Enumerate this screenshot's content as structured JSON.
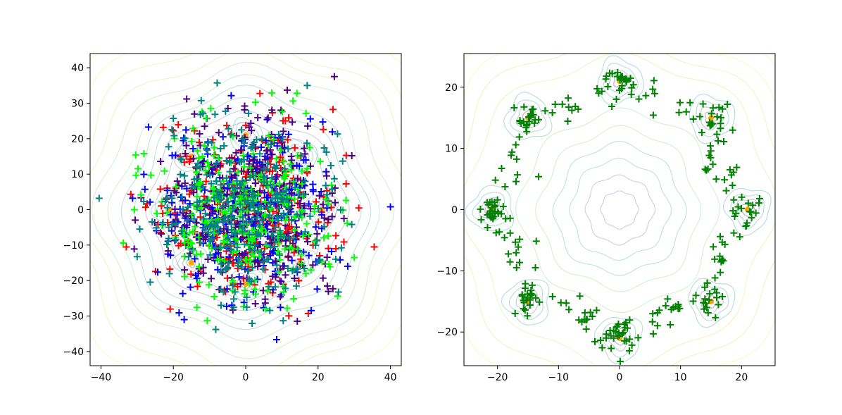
{
  "chart_data": [
    {
      "type": "scatter",
      "title": "",
      "xlabel": "",
      "ylabel": "",
      "xlim": [
        -43,
        43
      ],
      "ylim": [
        -44,
        44
      ],
      "xticks": [
        -40,
        -20,
        0,
        20,
        40
      ],
      "yticks": [
        -40,
        -30,
        -20,
        -10,
        0,
        10,
        20,
        30,
        40
      ],
      "xtick_labels": [
        "−40",
        "−20",
        "0",
        "20",
        "40"
      ],
      "ytick_labels": [
        "−40",
        "−30",
        "−20",
        "−10",
        "0",
        "10",
        "20",
        "30",
        "40"
      ],
      "grid": false,
      "background": "contour plot of 8-mode Gaussian mixture density (rings around radius ~21)",
      "modes": [
        [
          21,
          0
        ],
        [
          15,
          15
        ],
        [
          0,
          21
        ],
        [
          -15,
          15
        ],
        [
          -21,
          0
        ],
        [
          -15,
          -15
        ],
        [
          0,
          -21
        ],
        [
          15,
          -15
        ]
      ],
      "mode_color": "#ffa500",
      "series": [
        {
          "name": "red samples",
          "color": "#ff0000",
          "marker": "+",
          "count": 300,
          "distribution": "isotropic cloud, radius ~30"
        },
        {
          "name": "blue samples",
          "color": "#0000ff",
          "marker": "+",
          "count": 300,
          "distribution": "isotropic cloud, radius ~30"
        },
        {
          "name": "purple samples",
          "color": "#4b0082",
          "marker": "+",
          "count": 300,
          "distribution": "isotropic cloud, radius ~30"
        },
        {
          "name": "lime samples",
          "color": "#00ff00",
          "marker": "+",
          "count": 300,
          "distribution": "isotropic cloud, radius ~30"
        },
        {
          "name": "teal samples",
          "color": "#008080",
          "marker": "+",
          "count": 300,
          "distribution": "isotropic cloud, radius ~30"
        }
      ],
      "notable_points": [
        [
          -40.5,
          3.2
        ],
        [
          17,
          35
        ],
        [
          24.5,
          37.5
        ],
        [
          40,
          0.8
        ],
        [
          35.5,
          -10.5
        ]
      ]
    },
    {
      "type": "scatter",
      "title": "",
      "xlabel": "",
      "ylabel": "",
      "xlim": [
        -25.5,
        25.5
      ],
      "ylim": [
        -25.5,
        25.5
      ],
      "xticks": [
        -20,
        -10,
        0,
        10,
        20
      ],
      "yticks": [
        -20,
        -10,
        0,
        10,
        20
      ],
      "xtick_labels": [
        "−20",
        "−10",
        "0",
        "10",
        "20"
      ],
      "ytick_labels": [
        "−20",
        "−10",
        "0",
        "10",
        "20"
      ],
      "grid": false,
      "background": "contour plot of 8-mode Gaussian mixture density",
      "modes": [
        [
          21,
          0
        ],
        [
          15,
          15
        ],
        [
          0,
          21
        ],
        [
          -15,
          15
        ],
        [
          -21,
          0
        ],
        [
          -15,
          -15
        ],
        [
          0,
          -21
        ],
        [
          15,
          -15
        ]
      ],
      "mode_color": "#ffa500",
      "series": [
        {
          "name": "green samples",
          "color": "#008000",
          "marker": "+",
          "count": 300,
          "distribution": "ring of radius ~20 with clusters at the 8 modes"
        }
      ]
    }
  ]
}
